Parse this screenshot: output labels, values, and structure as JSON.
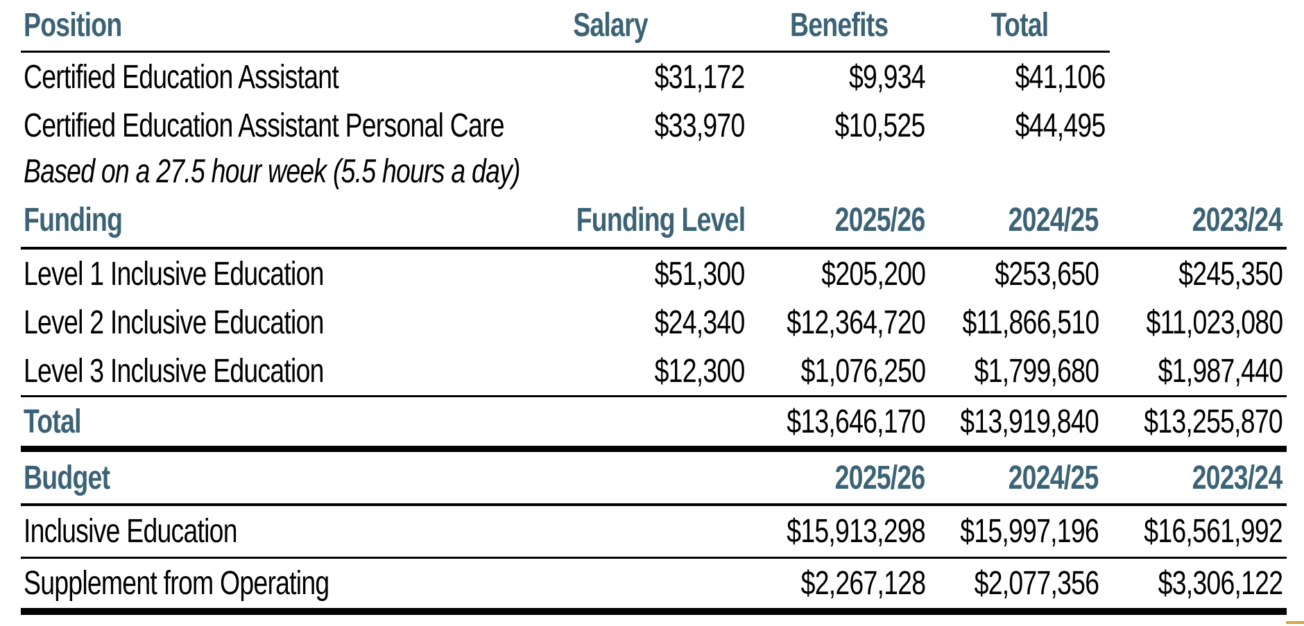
{
  "colors": {
    "heading": "#3B6375",
    "body_text": "#000000",
    "rule": "#000000",
    "accent_bar": "#D6A63F"
  },
  "position_table": {
    "headers": [
      "Position",
      "Salary",
      "Benefits",
      "Total"
    ],
    "rows": [
      {
        "label": "Certified Education Assistant",
        "values": [
          "$31,172",
          "$9,934",
          "$41,106"
        ]
      },
      {
        "label": "Certified Education Assistant Personal Care",
        "values": [
          "$33,970",
          "$10,525",
          "$44,495"
        ]
      }
    ],
    "note": "Based on a 27.5 hour week (5.5 hours a day)"
  },
  "funding_table": {
    "headers": [
      "Funding",
      "Funding Level",
      "2025/26",
      "2024/25",
      "2023/24"
    ],
    "rows": [
      {
        "label": "Level 1 Inclusive Education",
        "values": [
          "$51,300",
          "$205,200",
          "$253,650",
          "$245,350"
        ]
      },
      {
        "label": "Level 2 Inclusive Education",
        "values": [
          "$24,340",
          "$12,364,720",
          "$11,866,510",
          "$11,023,080"
        ]
      },
      {
        "label": "Level 3 Inclusive Education",
        "values": [
          "$12,300",
          "$1,076,250",
          "$1,799,680",
          "$1,987,440"
        ]
      }
    ],
    "total": {
      "label": "Total",
      "values": [
        "$13,646,170",
        "$13,919,840",
        "$13,255,870"
      ]
    }
  },
  "budget_table": {
    "headers": [
      "Budget",
      "2025/26",
      "2024/25",
      "2023/24"
    ],
    "rows": [
      {
        "label": "Inclusive Education",
        "values": [
          "$15,913,298",
          "$15,997,196",
          "$16,561,992"
        ]
      },
      {
        "label": "Supplement from Operating",
        "values": [
          "$2,267,128",
          "$2,077,356",
          "$3,306,122"
        ]
      }
    ]
  }
}
